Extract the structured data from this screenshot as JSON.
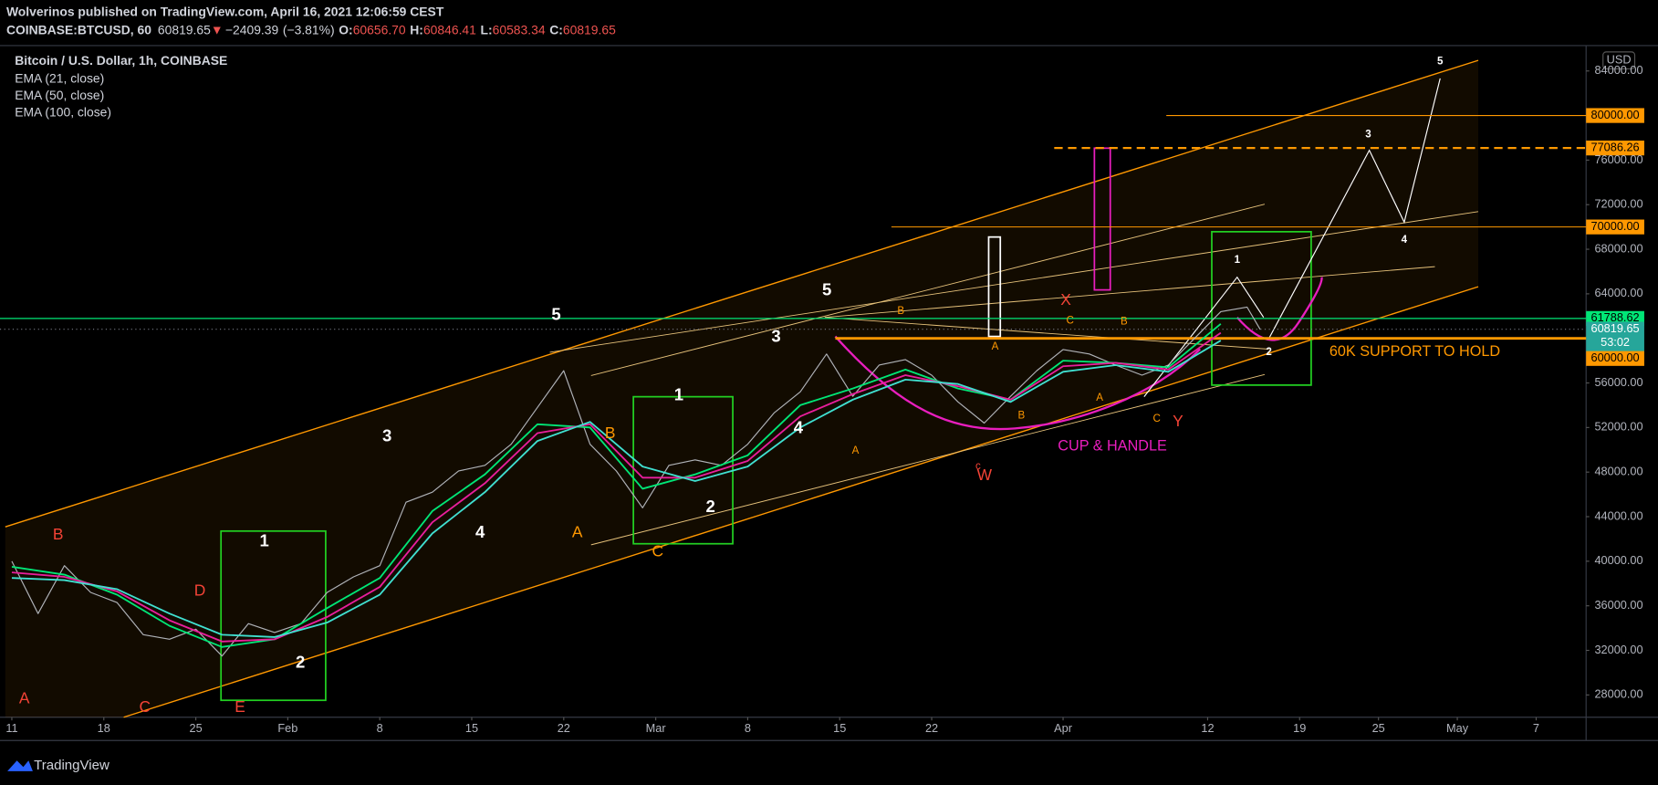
{
  "header": {
    "published": "Wolverinos published on TradingView.com, April 16, 2021 12:06:59 CEST",
    "symbol": "COINBASE:BTCUSD, 60",
    "last": "60819.65",
    "arrow": "▼",
    "change": "−2409.39",
    "change_pct": "(−3.81%)",
    "o_label": "O:",
    "open": "60656.70",
    "h_label": "H:",
    "high": "60846.41",
    "l_label": "L:",
    "low": "60583.34",
    "c_label": "C:",
    "close": "60819.65"
  },
  "chart_data": {
    "type": "line",
    "currency": "USD",
    "xlim": [
      -0.9,
      119.8
    ],
    "ylim": [
      26000,
      86280
    ],
    "xticks": [
      {
        "value": 0,
        "label": "11"
      },
      {
        "value": 7,
        "label": "18"
      },
      {
        "value": 14,
        "label": "25"
      },
      {
        "value": 21,
        "label": "Feb"
      },
      {
        "value": 28,
        "label": "8"
      },
      {
        "value": 35,
        "label": "15"
      },
      {
        "value": 42,
        "label": "22"
      },
      {
        "value": 49,
        "label": "Mar"
      },
      {
        "value": 56,
        "label": "8"
      },
      {
        "value": 63,
        "label": "15"
      },
      {
        "value": 70,
        "label": "22"
      },
      {
        "value": 80,
        "label": "Apr"
      },
      {
        "value": 91,
        "label": "12"
      },
      {
        "value": 98,
        "label": "19"
      },
      {
        "value": 104,
        "label": "25"
      },
      {
        "value": 110,
        "label": "May"
      },
      {
        "value": 116,
        "label": "7"
      }
    ],
    "yticks": [
      {
        "value": 84000,
        "label": "84000.00"
      },
      {
        "value": 76000,
        "label": "76000.00"
      },
      {
        "value": 72000,
        "label": "72000.00"
      },
      {
        "value": 68000,
        "label": "68000.00"
      },
      {
        "value": 64000,
        "label": "64000.00"
      },
      {
        "value": 56000,
        "label": "56000.00"
      },
      {
        "value": 52000,
        "label": "52000.00"
      },
      {
        "value": 48000,
        "label": "48000.00"
      },
      {
        "value": 44000,
        "label": "44000.00"
      },
      {
        "value": 40000,
        "label": "40000.00"
      },
      {
        "value": 36000,
        "label": "36000.00"
      },
      {
        "value": 32000,
        "label": "32000.00"
      },
      {
        "value": 28000,
        "label": "28000.00"
      }
    ],
    "series": [
      {
        "name": "Bitcoin / U.S. Dollar, 1h, COINBASE",
        "color": "#b0b3b8",
        "x": [
          0,
          2,
          4,
          6,
          8,
          10,
          12,
          14,
          16,
          18,
          20,
          22,
          24,
          26,
          28,
          30,
          32,
          34,
          36,
          38,
          40,
          42,
          44,
          46,
          48,
          50,
          52,
          54,
          56,
          58,
          60,
          62,
          64,
          66,
          68,
          70,
          72,
          74,
          76,
          78,
          80,
          82,
          84,
          86,
          88,
          90,
          92,
          94,
          95
        ],
        "values": [
          40000,
          35300,
          39600,
          37200,
          36300,
          33400,
          33000,
          33900,
          31500,
          34400,
          33600,
          34400,
          37200,
          38600,
          39600,
          45300,
          46200,
          48100,
          48600,
          50500,
          53800,
          57100,
          50500,
          48100,
          44800,
          48600,
          49100,
          48600,
          50500,
          53300,
          55200,
          58600,
          54800,
          57600,
          58100,
          56700,
          54300,
          52400,
          54800,
          57100,
          59000,
          58600,
          57600,
          56700,
          57600,
          60000,
          62400,
          62800,
          60800
        ]
      },
      {
        "name": "EMA (21, close)",
        "color": "#00e676",
        "x": [
          0,
          4,
          8,
          12,
          16,
          20,
          24,
          28,
          32,
          36,
          40,
          44,
          48,
          52,
          56,
          60,
          64,
          68,
          72,
          76,
          80,
          84,
          88,
          92
        ],
        "values": [
          39500,
          38800,
          37000,
          34200,
          32300,
          33000,
          35800,
          38500,
          44500,
          47800,
          52300,
          52000,
          46500,
          47800,
          49500,
          54000,
          55500,
          57200,
          55500,
          54500,
          58000,
          57800,
          57400,
          61300
        ]
      },
      {
        "name": "EMA (50, close)",
        "color": "#e91e9c",
        "x": [
          0,
          4,
          8,
          12,
          16,
          20,
          24,
          28,
          32,
          36,
          40,
          44,
          48,
          52,
          56,
          60,
          64,
          68,
          72,
          76,
          80,
          84,
          88,
          92
        ],
        "values": [
          39000,
          38600,
          37300,
          34700,
          32800,
          33000,
          35000,
          37700,
          43500,
          47000,
          51500,
          52300,
          47500,
          47500,
          49000,
          53000,
          55000,
          56700,
          55700,
          54500,
          57500,
          57800,
          57200,
          60500
        ]
      },
      {
        "name": "EMA (100, close)",
        "color": "#40e0d0",
        "x": [
          0,
          4,
          8,
          12,
          16,
          20,
          24,
          28,
          32,
          36,
          40,
          44,
          48,
          52,
          56,
          60,
          64,
          68,
          72,
          76,
          80,
          84,
          88,
          92
        ],
        "values": [
          38500,
          38300,
          37500,
          35300,
          33400,
          33200,
          34500,
          37000,
          42500,
          46200,
          50800,
          52500,
          48500,
          47200,
          48500,
          52000,
          54500,
          56300,
          55900,
          54300,
          57000,
          57600,
          57000,
          59800
        ]
      }
    ],
    "price_tags": [
      {
        "value": 80000,
        "label": "80000.00",
        "color": "#ff9800"
      },
      {
        "value": 77086.26,
        "label": "77086.26",
        "color": "#ff9800"
      },
      {
        "value": 70000,
        "label": "70000.00",
        "color": "#ff9800"
      },
      {
        "value": 61788.62,
        "label": "61788.62",
        "color": "#00e676"
      },
      {
        "value": 60819.65,
        "label": "60819.65",
        "color": "#26a69a",
        "countdown": "53:02"
      },
      {
        "value": 60000,
        "label": "60000.00",
        "color": "#ff9800"
      }
    ],
    "annotations": [
      "5",
      "3",
      "4",
      "1",
      "2",
      "1",
      "2",
      "3",
      "4",
      "5",
      "1",
      "2",
      "3",
      "4",
      "5",
      "B",
      "D",
      "A",
      "C",
      "E",
      "W",
      "X",
      "Y",
      "B",
      "A",
      "C",
      "B",
      "A",
      "C",
      "B",
      "A",
      "c",
      "B",
      "A",
      "C",
      "CUP & HANDLE",
      "60K SUPPORT TO HOLD"
    ]
  },
  "footer": {
    "brand": "TradingView"
  }
}
